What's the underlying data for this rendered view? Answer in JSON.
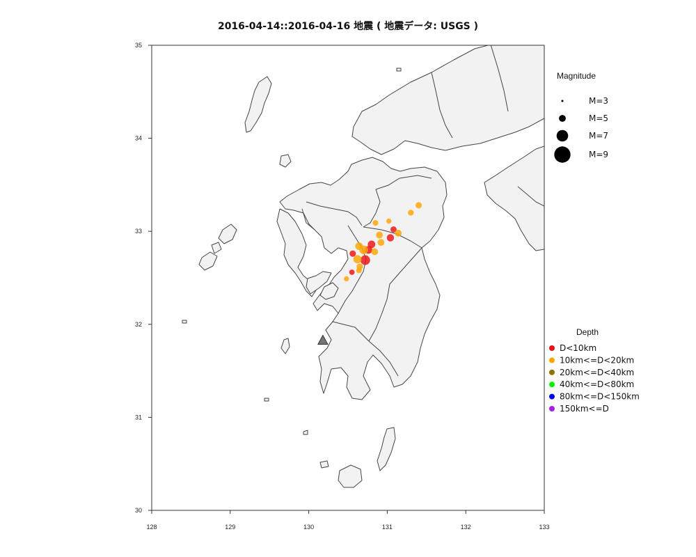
{
  "title": "2016-04-14::2016-04-16 地震 ( 地震データ: USGS )",
  "map": {
    "lon_range": [
      128,
      133
    ],
    "lat_range": [
      30,
      35
    ],
    "x_ticks": [
      "128",
      "129",
      "130",
      "131",
      "132",
      "133"
    ],
    "y_ticks": [
      "30",
      "31",
      "32",
      "33",
      "34",
      "35"
    ]
  },
  "legend_magnitude": {
    "title": "Magnitude",
    "items": [
      {
        "label": "M=3",
        "mag": 3
      },
      {
        "label": "M=5",
        "mag": 5
      },
      {
        "label": "M=7",
        "mag": 7
      },
      {
        "label": "M=9",
        "mag": 9
      }
    ]
  },
  "legend_depth": {
    "title": "Depth",
    "items": [
      {
        "label": "D<10km",
        "color": "#ee1111"
      },
      {
        "label": "10km<=D<20km",
        "color": "#ffa500"
      },
      {
        "label": "20km<=D<40km",
        "color": "#8b7500"
      },
      {
        "label": "40km<=D<80km",
        "color": "#00ee00"
      },
      {
        "label": "80km<=D<150km",
        "color": "#0000ee"
      },
      {
        "label": "150km<=D",
        "color": "#a020f0"
      }
    ]
  },
  "volcanoes": [
    {
      "lon": 130.18,
      "lat": 31.83
    }
  ],
  "earthquakes": [
    {
      "lon": 130.85,
      "lat": 33.09,
      "mag": 4.5,
      "depth": 15
    },
    {
      "lon": 131.02,
      "lat": 33.11,
      "mag": 4.3,
      "depth": 15
    },
    {
      "lon": 131.3,
      "lat": 33.2,
      "mag": 4.6,
      "depth": 15
    },
    {
      "lon": 131.4,
      "lat": 33.28,
      "mag": 4.8,
      "depth": 15
    },
    {
      "lon": 131.08,
      "lat": 33.02,
      "mag": 4.7,
      "depth": 8
    },
    {
      "lon": 131.14,
      "lat": 32.98,
      "mag": 5.0,
      "depth": 15
    },
    {
      "lon": 131.04,
      "lat": 32.93,
      "mag": 5.2,
      "depth": 8
    },
    {
      "lon": 130.9,
      "lat": 32.96,
      "mag": 5.0,
      "depth": 15
    },
    {
      "lon": 130.92,
      "lat": 32.88,
      "mag": 5.0,
      "depth": 15
    },
    {
      "lon": 130.8,
      "lat": 32.86,
      "mag": 5.3,
      "depth": 8
    },
    {
      "lon": 130.76,
      "lat": 32.8,
      "mag": 5.4,
      "depth": 8
    },
    {
      "lon": 130.84,
      "lat": 32.78,
      "mag": 5.0,
      "depth": 15
    },
    {
      "lon": 130.64,
      "lat": 32.84,
      "mag": 5.3,
      "depth": 15
    },
    {
      "lon": 130.7,
      "lat": 32.8,
      "mag": 5.8,
      "depth": 15
    },
    {
      "lon": 130.56,
      "lat": 32.76,
      "mag": 4.8,
      "depth": 8
    },
    {
      "lon": 130.72,
      "lat": 32.69,
      "mag": 6.2,
      "depth": 8
    },
    {
      "lon": 130.62,
      "lat": 32.7,
      "mag": 5.6,
      "depth": 15
    },
    {
      "lon": 130.65,
      "lat": 32.62,
      "mag": 4.8,
      "depth": 15
    },
    {
      "lon": 130.55,
      "lat": 32.56,
      "mag": 4.4,
      "depth": 8
    },
    {
      "lon": 130.64,
      "lat": 32.58,
      "mag": 4.5,
      "depth": 15
    },
    {
      "lon": 130.48,
      "lat": 32.49,
      "mag": 4.3,
      "depth": 15
    }
  ]
}
